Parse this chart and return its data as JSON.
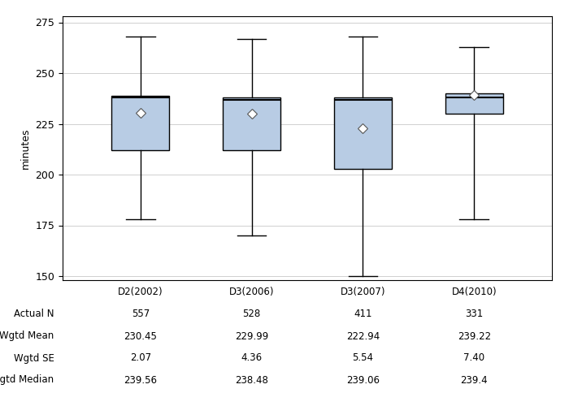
{
  "groups": [
    "D2(2002)",
    "D3(2006)",
    "D3(2007)",
    "D4(2010)"
  ],
  "boxes": [
    {
      "q1": 212,
      "median": 238,
      "q3": 239,
      "whislo": 178,
      "whishi": 268,
      "mean": 230.45
    },
    {
      "q1": 212,
      "median": 237,
      "q3": 238,
      "whislo": 170,
      "whishi": 267,
      "mean": 229.99
    },
    {
      "q1": 203,
      "median": 237,
      "q3": 238,
      "whislo": 150,
      "whishi": 268,
      "mean": 222.94
    },
    {
      "q1": 230,
      "median": 238,
      "q3": 240,
      "whislo": 178,
      "whishi": 263,
      "mean": 239.22
    }
  ],
  "ylim": [
    148,
    278
  ],
  "yticks": [
    150,
    175,
    200,
    225,
    250,
    275
  ],
  "ylabel": "minutes",
  "box_color": "#b8cce4",
  "box_edge_color": "#000000",
  "median_color": "#000000",
  "whisker_color": "#000000",
  "cap_color": "#000000",
  "mean_marker": "D",
  "mean_marker_color": "white",
  "mean_marker_edge_color": "#555555",
  "mean_marker_size": 6,
  "grid_color": "#d0d0d0",
  "background_color": "#ffffff",
  "plot_bg_color": "#ffffff",
  "table_rows": [
    "Actual N",
    "Wgtd Mean",
    "Wgtd SE",
    "Wgtd Median"
  ],
  "table_data": [
    [
      "557",
      "528",
      "411",
      "331"
    ],
    [
      "230.45",
      "229.99",
      "222.94",
      "239.22"
    ],
    [
      "2.07",
      "4.36",
      "5.54",
      "7.40"
    ],
    [
      "239.56",
      "238.48",
      "239.06",
      "239.4"
    ]
  ],
  "figsize": [
    7.0,
    5.0
  ],
  "dpi": 100
}
